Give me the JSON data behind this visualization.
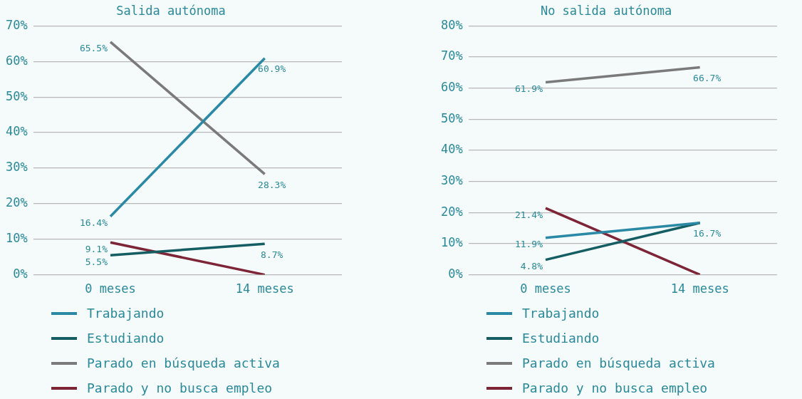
{
  "chart_data": [
    {
      "type": "line",
      "title": "Salida autónoma",
      "categories": [
        "0 meses",
        "14 meses"
      ],
      "ylim": [
        0,
        70
      ],
      "yticks": [
        {
          "value": 0,
          "label": "0%"
        },
        {
          "value": 10,
          "label": "10%"
        },
        {
          "value": 20,
          "label": "20%"
        },
        {
          "value": 30,
          "label": "30%"
        },
        {
          "value": 40,
          "label": "40%"
        },
        {
          "value": 50,
          "label": "50%"
        },
        {
          "value": 60,
          "label": "60%"
        },
        {
          "value": 70,
          "label": "70%"
        }
      ],
      "grid": "y",
      "legend": "bottom",
      "series": [
        {
          "name": "Trabajando",
          "color": "#2a8aa5",
          "values": [
            16.4,
            60.9
          ],
          "value_labels": [
            "16.4%",
            "60.9%"
          ]
        },
        {
          "name": "Estudiando",
          "color": "#145e63",
          "values": [
            5.5,
            8.7
          ],
          "value_labels": [
            "5.5%",
            "8.7%"
          ]
        },
        {
          "name": "Parado en búsqueda activa",
          "color": "#7a7a7a",
          "values": [
            65.5,
            28.3
          ],
          "value_labels": [
            "65.5%",
            "28.3%"
          ]
        },
        {
          "name": "Parado y no busca empleo",
          "color": "#7d2436",
          "values": [
            9.1,
            0
          ],
          "value_labels": [
            "9.1%",
            null
          ]
        }
      ]
    },
    {
      "type": "line",
      "title": "No salida autónoma",
      "categories": [
        "0 meses",
        "14 meses"
      ],
      "ylim": [
        0,
        80
      ],
      "yticks": [
        {
          "value": 0,
          "label": "0%"
        },
        {
          "value": 10,
          "label": "10%"
        },
        {
          "value": 20,
          "label": "20%"
        },
        {
          "value": 30,
          "label": "30%"
        },
        {
          "value": 40,
          "label": "40%"
        },
        {
          "value": 50,
          "label": "50%"
        },
        {
          "value": 60,
          "label": "60%"
        },
        {
          "value": 70,
          "label": "70%"
        },
        {
          "value": 80,
          "label": "80%"
        }
      ],
      "grid": "y",
      "legend": "bottom",
      "series": [
        {
          "name": "Trabajando",
          "color": "#2a8aa5",
          "values": [
            11.9,
            16.7
          ],
          "value_labels": [
            "11.9%",
            "16.7%"
          ]
        },
        {
          "name": "Estudiando",
          "color": "#145e63",
          "values": [
            4.8,
            16.7
          ],
          "value_labels": [
            "4.8%",
            null
          ]
        },
        {
          "name": "Parado en búsqueda activa",
          "color": "#7a7a7a",
          "values": [
            61.9,
            66.7
          ],
          "value_labels": [
            "61.9%",
            "66.7%"
          ]
        },
        {
          "name": "Parado y no busca empleo",
          "color": "#7d2436",
          "values": [
            21.4,
            0
          ],
          "value_labels": [
            "21.4%",
            null
          ]
        }
      ]
    }
  ]
}
